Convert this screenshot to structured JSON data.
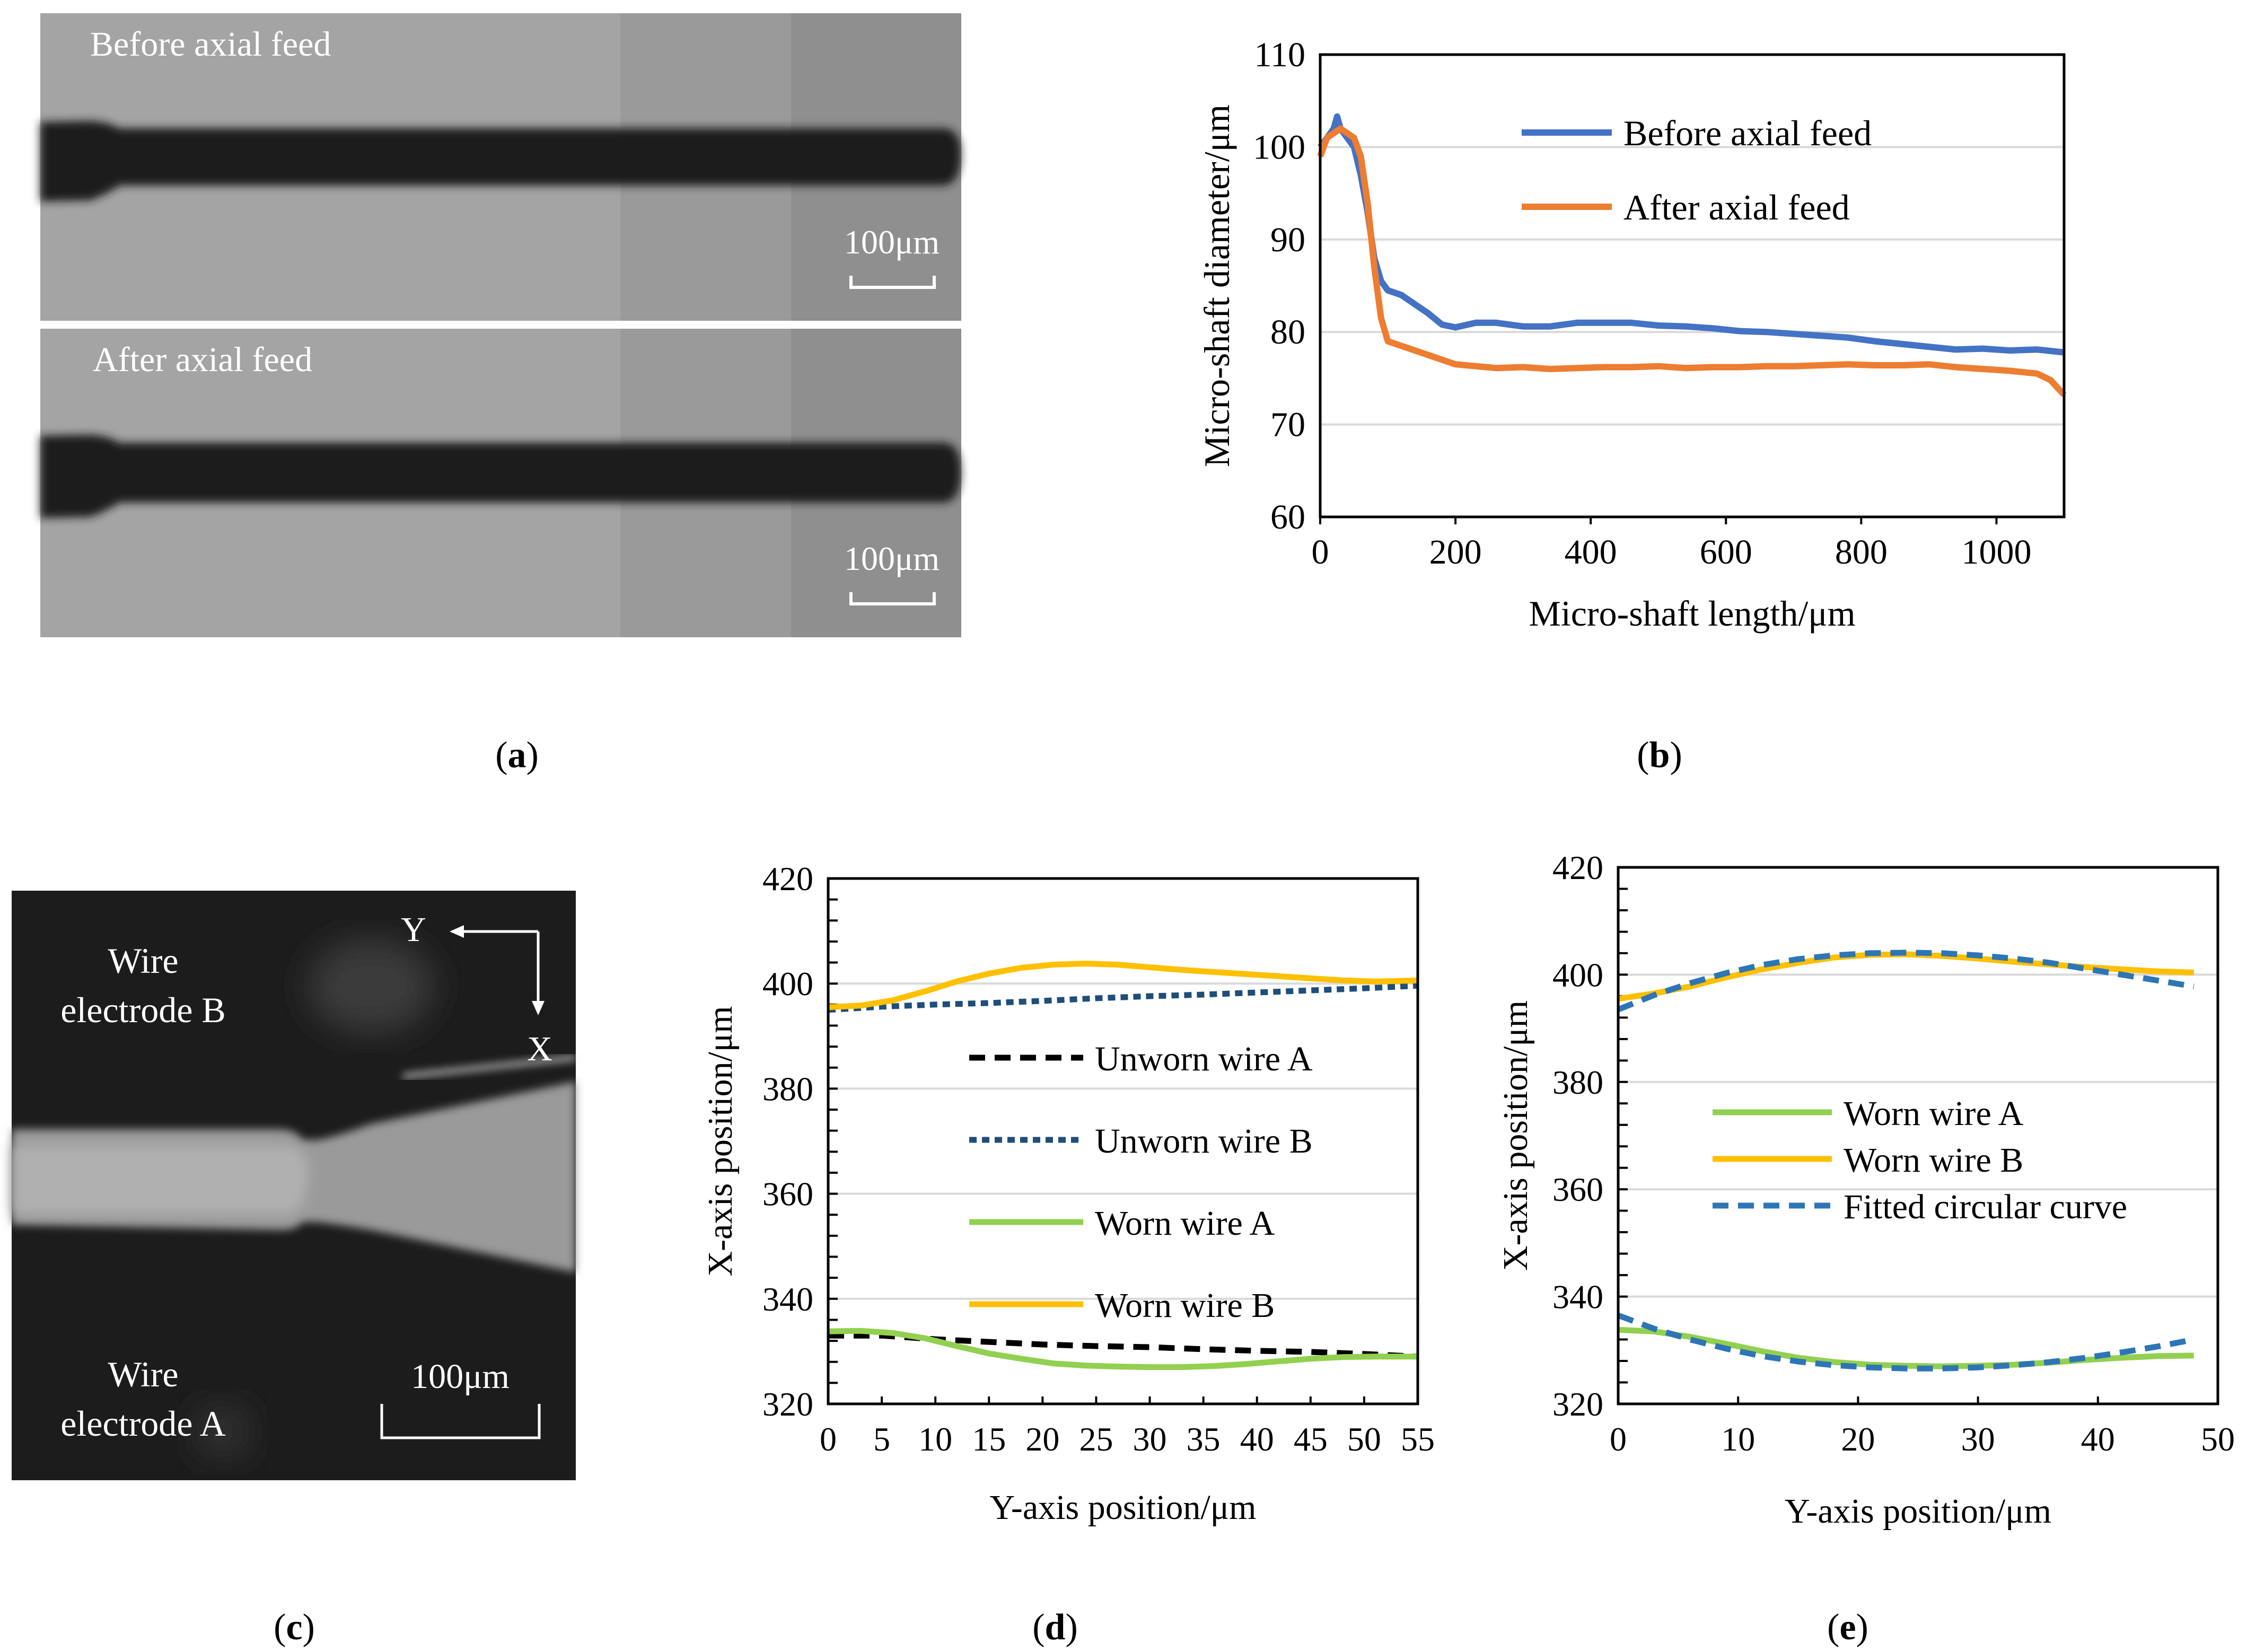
{
  "figure_labels": {
    "a": "a",
    "b": "b",
    "c": "c",
    "d": "d",
    "e": "e"
  },
  "panel_a": {
    "top_label": "Before axial feed",
    "bottom_label": "After axial feed",
    "scale_text": "100μm"
  },
  "panel_c": {
    "wire_b_line1": "Wire",
    "wire_b_line2": "electrode B",
    "wire_a_line1": "Wire",
    "wire_a_line2": "electrode A",
    "axis_y": "Y",
    "axis_x": "X",
    "scale_text": "100μm"
  },
  "colors": {
    "blue": "#4472C4",
    "orange": "#ED7D31",
    "black": "#000000",
    "navy": "#1F4E79",
    "green": "#92D050",
    "gold": "#FFC000",
    "fit_blue": "#2E75B6",
    "grid": "#D9D9D9"
  },
  "chart_data": [
    {
      "id": "b",
      "type": "line",
      "title": "",
      "xlabel": "Micro-shaft length/μm",
      "ylabel": "Micro-shaft diameter/μm",
      "xlim": [
        0,
        1100
      ],
      "ylim": [
        60,
        110
      ],
      "xticks": [
        0,
        200,
        400,
        600,
        800,
        1000
      ],
      "yticks": [
        60,
        70,
        80,
        90,
        100,
        110
      ],
      "legend_position": "top-right",
      "series": [
        {
          "name": "Before axial feed",
          "color": "#4472C4",
          "dash": "solid",
          "x": [
            0,
            10,
            20,
            25,
            30,
            40,
            50,
            60,
            70,
            80,
            90,
            100,
            120,
            140,
            160,
            180,
            200,
            230,
            260,
            300,
            340,
            380,
            420,
            460,
            500,
            540,
            580,
            620,
            660,
            700,
            740,
            780,
            820,
            860,
            900,
            940,
            980,
            1020,
            1060,
            1100
          ],
          "y": [
            100,
            101,
            102,
            103.3,
            102,
            101,
            100,
            97,
            93,
            88,
            85.5,
            84.5,
            84,
            83,
            82,
            80.8,
            80.5,
            81,
            81,
            80.6,
            80.6,
            81,
            81,
            81,
            80.7,
            80.6,
            80.4,
            80.1,
            80,
            79.8,
            79.6,
            79.4,
            79,
            78.7,
            78.4,
            78.1,
            78.2,
            78,
            78.1,
            77.8
          ]
        },
        {
          "name": "After axial feed",
          "color": "#ED7D31",
          "dash": "solid",
          "x": [
            0,
            10,
            20,
            30,
            40,
            50,
            60,
            70,
            80,
            90,
            100,
            120,
            140,
            160,
            180,
            200,
            230,
            260,
            300,
            340,
            380,
            420,
            460,
            500,
            540,
            580,
            620,
            660,
            700,
            740,
            780,
            820,
            860,
            900,
            940,
            980,
            1020,
            1060,
            1080,
            1100
          ],
          "y": [
            99,
            101,
            101.5,
            102,
            101.5,
            101,
            99,
            94,
            87,
            81.5,
            79,
            78.5,
            78,
            77.5,
            77,
            76.5,
            76.3,
            76.1,
            76.2,
            76,
            76.1,
            76.2,
            76.2,
            76.3,
            76.1,
            76.2,
            76.2,
            76.3,
            76.3,
            76.4,
            76.5,
            76.4,
            76.4,
            76.5,
            76.2,
            76,
            75.8,
            75.5,
            74.8,
            73.2
          ]
        }
      ]
    },
    {
      "id": "d",
      "type": "line",
      "title": "",
      "xlabel": "Y-axis position/μm",
      "ylabel": "X-axis position/μm",
      "xlim": [
        0,
        55
      ],
      "ylim": [
        320,
        420
      ],
      "xticks": [
        0,
        5,
        10,
        15,
        20,
        25,
        30,
        35,
        40,
        45,
        50,
        55
      ],
      "yticks": [
        320,
        340,
        360,
        380,
        400,
        420
      ],
      "legend_position": "center",
      "series": [
        {
          "name": "Unworn wire A",
          "color": "#000000",
          "dash": "dash",
          "x": [
            0,
            5,
            10,
            15,
            20,
            25,
            30,
            35,
            40,
            45,
            50,
            55
          ],
          "y": [
            333,
            333,
            332.3,
            331.8,
            331.3,
            331,
            330.8,
            330.4,
            330.1,
            329.9,
            329.5,
            329
          ]
        },
        {
          "name": "Unworn wire B",
          "color": "#1F4E79",
          "dash": "dot",
          "x": [
            0,
            5,
            10,
            15,
            20,
            25,
            30,
            35,
            40,
            45,
            50,
            55
          ],
          "y": [
            395,
            395.6,
            396,
            396.3,
            396.7,
            397.2,
            397.6,
            397.9,
            398.3,
            398.7,
            399.1,
            399.6
          ]
        },
        {
          "name": "Worn wire A",
          "color": "#92D050",
          "dash": "solid",
          "x": [
            0,
            3,
            6,
            9,
            12,
            15,
            18,
            21,
            24,
            27,
            30,
            33,
            36,
            39,
            42,
            45,
            48,
            51,
            55
          ],
          "y": [
            333.8,
            333.9,
            333.5,
            332.5,
            331,
            329.6,
            328.6,
            327.7,
            327.3,
            327.1,
            327,
            327,
            327.2,
            327.6,
            328.1,
            328.6,
            328.9,
            329,
            329
          ]
        },
        {
          "name": "Worn wire B",
          "color": "#FFC000",
          "dash": "solid",
          "x": [
            0,
            3,
            6,
            9,
            12,
            15,
            18,
            21,
            24,
            27,
            30,
            33,
            36,
            39,
            42,
            45,
            48,
            51,
            55
          ],
          "y": [
            395.5,
            395.8,
            396.8,
            398.5,
            400.4,
            401.9,
            403,
            403.6,
            403.8,
            403.6,
            403.1,
            402.6,
            402.2,
            401.8,
            401.4,
            401,
            400.6,
            400.4,
            400.6
          ]
        }
      ]
    },
    {
      "id": "e",
      "type": "line",
      "title": "",
      "xlabel": "Y-axis position/μm",
      "ylabel": "X-axis position/μm",
      "xlim": [
        0,
        50
      ],
      "ylim": [
        320,
        420
      ],
      "xticks": [
        0,
        10,
        20,
        30,
        40,
        50
      ],
      "yticks": [
        320,
        340,
        360,
        380,
        400,
        420
      ],
      "legend_position": "center",
      "series": [
        {
          "name": "Worn wire A",
          "color": "#92D050",
          "dash": "solid",
          "x": [
            0,
            3,
            6,
            9,
            12,
            15,
            18,
            21,
            24,
            27,
            30,
            33,
            36,
            39,
            42,
            45,
            48
          ],
          "y": [
            333.8,
            333.5,
            332.5,
            331.2,
            329.8,
            328.6,
            327.8,
            327.3,
            327.1,
            327,
            327.1,
            327.3,
            327.7,
            328.2,
            328.6,
            328.9,
            329
          ]
        },
        {
          "name": "Worn wire B",
          "color": "#FFC000",
          "dash": "solid",
          "x": [
            0,
            3,
            6,
            9,
            12,
            15,
            18,
            21,
            24,
            27,
            30,
            33,
            36,
            39,
            42,
            45,
            48
          ],
          "y": [
            395.5,
            396.5,
            397.8,
            399.5,
            401,
            402.2,
            403.2,
            403.7,
            403.8,
            403.5,
            403,
            402.4,
            401.9,
            401.4,
            401,
            400.6,
            400.4
          ]
        },
        {
          "name": "Fitted circular curve",
          "color": "#2E75B6",
          "dash": "dash",
          "x": [
            0,
            3,
            6,
            9,
            12,
            15,
            18,
            21,
            24,
            27,
            30,
            33,
            36,
            39,
            42,
            45,
            48
          ],
          "y": [
            393.5,
            396.2,
            398.4,
            400.3,
            401.8,
            402.9,
            403.6,
            404,
            404.1,
            404,
            403.6,
            403,
            402.2,
            401.1,
            400,
            398.9,
            397.8
          ]
        },
        {
          "name": "Fitted circular curve (wire A)",
          "color": "#2E75B6",
          "dash": "dash",
          "legend": false,
          "x": [
            0,
            3,
            6,
            9,
            12,
            15,
            18,
            21,
            24,
            27,
            30,
            33,
            36,
            39,
            42,
            45,
            48
          ],
          "y": [
            336.5,
            334,
            332,
            330.3,
            328.9,
            327.9,
            327.2,
            326.8,
            326.6,
            326.6,
            326.8,
            327.2,
            327.8,
            328.6,
            329.6,
            330.7,
            332
          ]
        }
      ]
    }
  ]
}
